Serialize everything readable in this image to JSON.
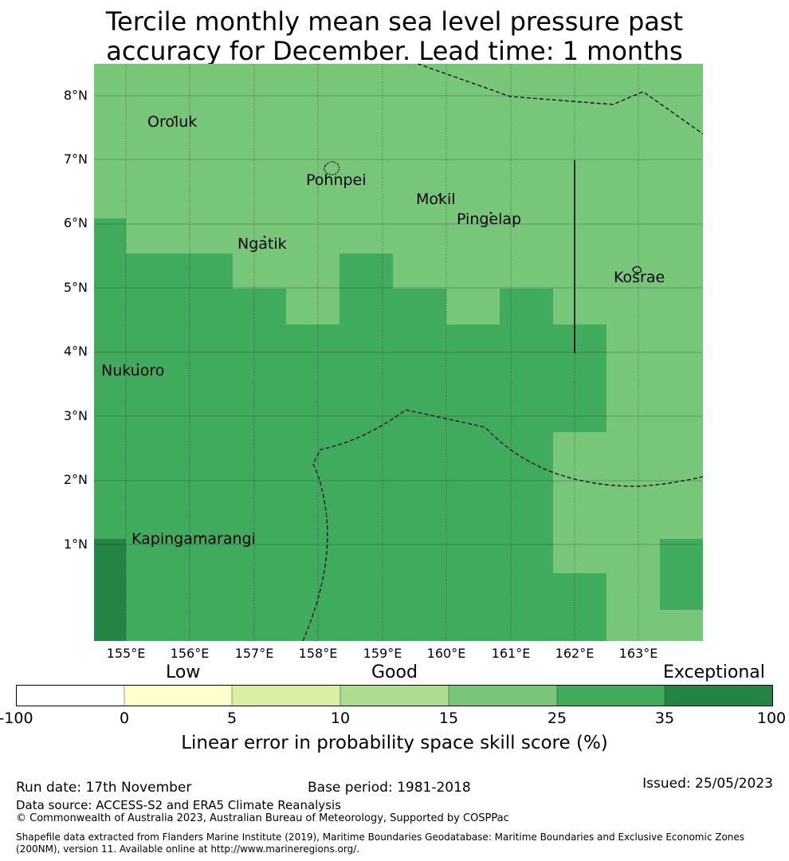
{
  "title": {
    "line1": "Tercile monthly mean sea level pressure past",
    "line2": "accuracy for December. Lead time: 1 months"
  },
  "map": {
    "lat_labels": [
      "8°N",
      "7°N",
      "6°N",
      "5°N",
      "4°N",
      "3°N",
      "2°N",
      "1°N"
    ],
    "lon_labels": [
      "155°E",
      "156°E",
      "157°E",
      "158°E",
      "159°E",
      "160°E",
      "161°E",
      "162°E",
      "163°E"
    ],
    "places": [
      "Oroluk",
      "Pohnpei",
      "Mokil",
      "Pingelap",
      "Ngatik",
      "Kosrae",
      "Nukuoro",
      "Kapingamarangi"
    ],
    "colors": {
      "good_15_25": "#78c679",
      "good_25_35": "#41ab5d",
      "exceptional_35_100": "#238443",
      "grid": "#000000",
      "boundary": "#000000"
    }
  },
  "colorbar": {
    "categories": [
      "Low",
      "Good",
      "Exceptional"
    ],
    "ticks": [
      "-100",
      "0",
      "5",
      "10",
      "15",
      "25",
      "35",
      "100"
    ],
    "colors": [
      "#ffffff",
      "#ffffcc",
      "#d9f0a3",
      "#addd8e",
      "#78c679",
      "#41ab5d",
      "#238443"
    ],
    "label": "Linear error in probability space skill score (%)"
  },
  "footer": {
    "run_date": "Run date: 17th November",
    "base_period": "Base period: 1981-2018",
    "issued": "Issued: 25/05/2023",
    "data_source": "Data source: ACCESS-S2 and ERA5 Climate Reanalysis",
    "copyright": "© Commonwealth of Australia 2023, Australian Bureau of Meteorology, Supported by COSPPac",
    "shapefile1": "Shapefile data extracted from Flanders Marine Institute (2019), Maritime Boundaries Geodatabase: Maritime Boundaries and Exclusive Economic Zones",
    "shapefile2": "(200NM), version 11. Available online at http://www.marineregions.org/."
  }
}
